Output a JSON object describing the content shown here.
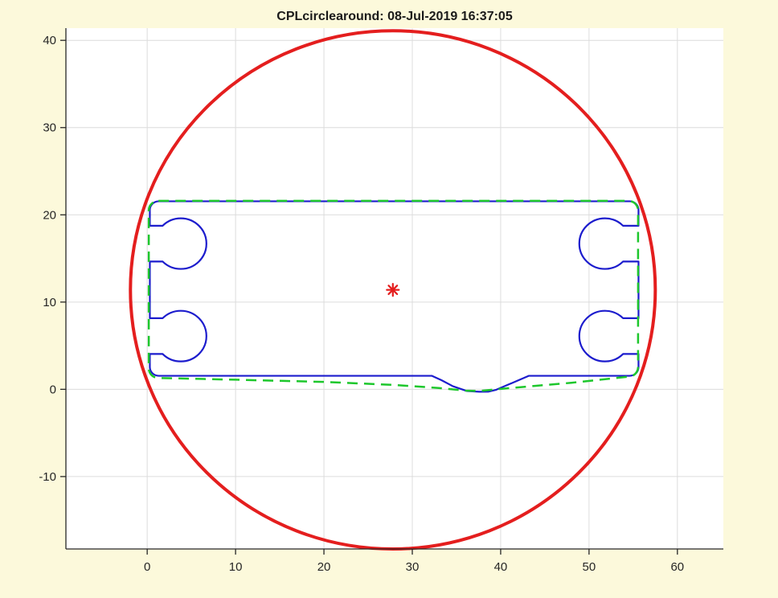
{
  "figure": {
    "title": "CPLcirclearound: 08-Jul-2019 16:37:05",
    "background_color": "#fcf9db",
    "plot_background": "#ffffff",
    "axis_color": "#262626",
    "grid_color": "#dcdcdc",
    "label_color": "#262626"
  },
  "chart_data": {
    "type": "line",
    "title": "CPLcirclearound: 08-Jul-2019 16:37:05",
    "grid": true,
    "legend": "none",
    "axes": {
      "xlim": [
        -9.2,
        65.2
      ],
      "ylim": [
        -18.3,
        41.4
      ],
      "xticks": [
        0,
        10,
        20,
        30,
        40,
        50,
        60
      ],
      "yticks": [
        -10,
        0,
        10,
        20,
        30,
        40
      ],
      "tick_length": 7
    },
    "series": [
      {
        "name": "clearance-circle",
        "kind": "circle",
        "color": "#e41e1e",
        "line_style": "solid",
        "line_width": 4,
        "center": [
          27.8,
          11.4
        ],
        "radius": 29.7
      },
      {
        "name": "circle-center-marker",
        "kind": "marker",
        "marker": "asterisk",
        "color": "#e41e1e",
        "line_width": 2.2,
        "point": [
          27.8,
          11.4
        ],
        "size": 7.5
      },
      {
        "name": "part-outline",
        "kind": "keyhole-rect",
        "color": "#1c1ccd",
        "line_style": "solid",
        "line_width": 2.2,
        "geometry": {
          "left": 0.3,
          "right": 55.6,
          "top": 21.55,
          "bottom": 1.55,
          "corner_radius": 1.0,
          "keyholes": {
            "radius": 2.9,
            "neck_half_gap": 2.05,
            "centers": [
              [
                3.8,
                16.7
              ],
              [
                3.8,
                6.1
              ],
              [
                51.8,
                16.7
              ],
              [
                51.8,
                6.1
              ]
            ]
          },
          "bottom_dip": [
            [
              43.2,
              1.55
            ],
            [
              39.5,
              -0.05
            ],
            [
              38.6,
              -0.27
            ],
            [
              37.6,
              -0.28
            ],
            [
              36.2,
              -0.2
            ],
            [
              34.6,
              0.35
            ],
            [
              33.3,
              1.05
            ],
            [
              32.2,
              1.55
            ]
          ]
        }
      },
      {
        "name": "envelope-outline",
        "kind": "envelope-rect",
        "color": "#1dc72c",
        "line_style": "dashed",
        "dash": [
          13,
          8
        ],
        "line_width": 2.5,
        "geometry": {
          "left": 0.18,
          "right": 55.55,
          "top": 21.6,
          "corner_radius": 1.1,
          "bottom_profile": [
            [
              54.45,
              1.45
            ],
            [
              48,
              0.75
            ],
            [
              44,
              0.4
            ],
            [
              40,
              0.05
            ],
            [
              37.5,
              -0.2
            ],
            [
              36,
              -0.15
            ],
            [
              33,
              0.15
            ],
            [
              28,
              0.5
            ],
            [
              20,
              0.85
            ],
            [
              10,
              1.1
            ],
            [
              1.35,
              1.3
            ]
          ]
        }
      }
    ]
  }
}
